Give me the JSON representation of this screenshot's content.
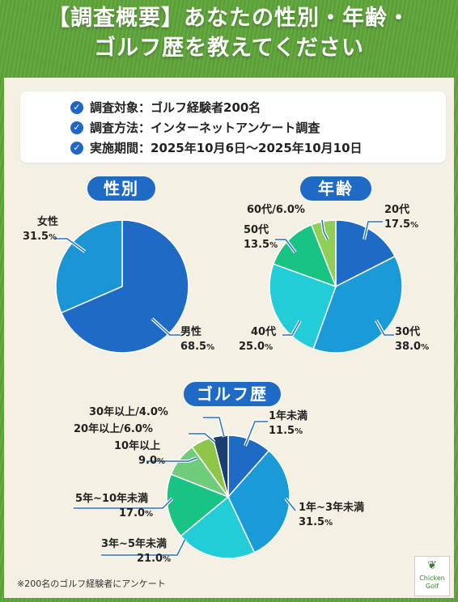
{
  "title": {
    "line1": "【調査概要】あなたの性別・年齢・",
    "line2": "ゴルフ歴を教えてください"
  },
  "survey": {
    "check_icon": "check-circle-icon",
    "items": [
      "調査対象：ゴルフ経験者200名",
      "調査方法：インターネットアンケート調査",
      "実施期間：2025年10月6日～2025年10月10日"
    ]
  },
  "footnote": "※200名のゴルフ経験者にアンケート",
  "logo": {
    "text1": "Chicken",
    "text2": "Golf"
  },
  "chart_data": [
    {
      "type": "pie",
      "title": "性別",
      "categories": [
        "男性",
        "女性"
      ],
      "values": [
        68.5,
        31.5
      ],
      "colors": [
        "#1e6ac4",
        "#1b95d4"
      ]
    },
    {
      "type": "pie",
      "title": "年齢",
      "categories": [
        "20代",
        "30代",
        "40代",
        "50代",
        "60代/6.0代"
      ],
      "labels": [
        "20代",
        "30代",
        "40代",
        "50代",
        "60代/6.0%"
      ],
      "values": [
        17.5,
        38.0,
        25.0,
        13.5,
        6.0
      ],
      "colors": [
        "#1e6ac4",
        "#1b9ad8",
        "#22cdd8",
        "#19c384",
        "#8fcf55"
      ]
    },
    {
      "type": "pie",
      "title": "ゴルフ歴",
      "categories": [
        "1年未満",
        "1年~3年未満",
        "3年~5年未満",
        "5年~10年未満",
        "10年以上",
        "20年以上",
        "30年以上"
      ],
      "values": [
        11.5,
        31.5,
        21.0,
        17.0,
        9.0,
        6.0,
        4.0
      ],
      "colors": [
        "#1e6ac4",
        "#1b9ad8",
        "#22cdd8",
        "#19c384",
        "#6fcc7a",
        "#8fc64a",
        "#1a3f6e"
      ]
    }
  ],
  "pct_unit": "%"
}
